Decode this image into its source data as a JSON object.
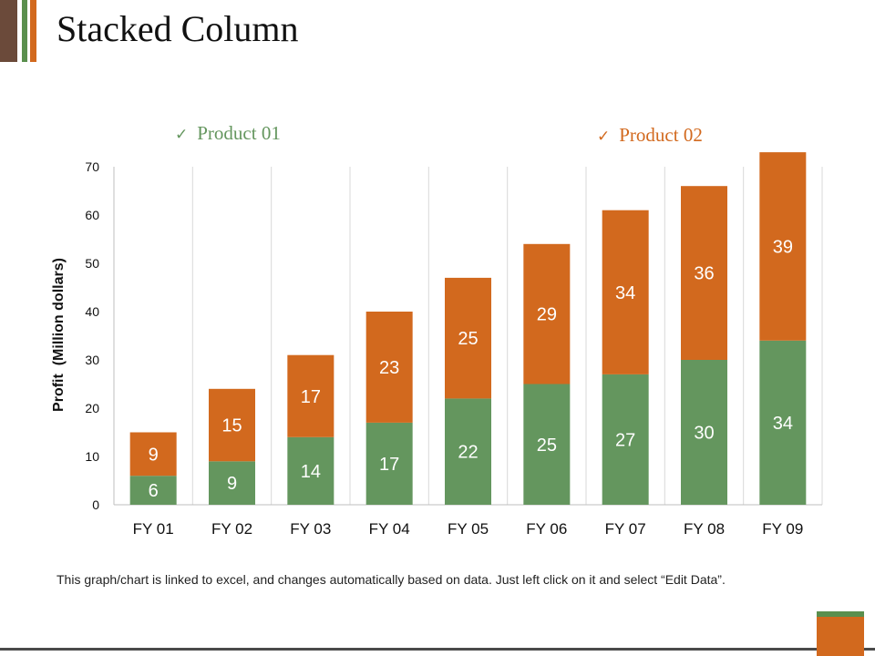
{
  "slide": {
    "title": "Stacked Column",
    "footnote": "This graph/chart is linked to excel, and changes automatically based on data. Just left click on it and select “Edit Data”.",
    "legend": [
      {
        "label": "Product 01",
        "color": "#64965e",
        "icon": "check-icon"
      },
      {
        "label": "Product 02",
        "color": "#d2691e",
        "icon": "check-icon"
      }
    ],
    "colors": {
      "accent_brown": "#6b4a3a",
      "accent_green": "#5a8f4e",
      "accent_orange": "#d2691e",
      "text": "#111111"
    }
  },
  "chart_data": {
    "type": "bar",
    "stacked": true,
    "categories": [
      "FY 01",
      "FY 02",
      "FY 03",
      "FY 04",
      "FY 05",
      "FY 06",
      "FY 07",
      "FY 08",
      "FY 09"
    ],
    "series": [
      {
        "name": "Product 01",
        "values": [
          6,
          9,
          14,
          17,
          22,
          25,
          27,
          30,
          34
        ],
        "color": "#64965e"
      },
      {
        "name": "Product 02",
        "values": [
          9,
          15,
          17,
          23,
          25,
          29,
          34,
          36,
          39
        ],
        "color": "#d2691e"
      }
    ],
    "ylabel": "Profit  (Million dollars)",
    "xlabel": "",
    "ylim": [
      0,
      70
    ],
    "yticks": [
      0,
      10,
      20,
      30,
      40,
      50,
      60,
      70
    ],
    "grid": "vertical",
    "data_labels": true,
    "legend_position": "top"
  }
}
